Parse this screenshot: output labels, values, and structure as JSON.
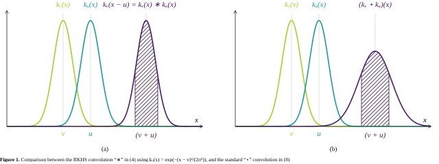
{
  "panels": [
    {
      "kv": "kᵥ(x)",
      "ku": "kᵤ(x)",
      "result": "kᵥ(x − u) = kᵥ(x) ∗ kᵤ(x)",
      "x_axis": "x",
      "v": "v",
      "u": "u",
      "vu": "(v + u)",
      "label": "(a)"
    },
    {
      "kv": "kᵥ(x)",
      "ku": "kᵤ(x)",
      "result": "(kᵥ ⋆ kᵤ)(x)",
      "x_axis": "x",
      "v": "v",
      "u": "u",
      "vu": "(v + u)",
      "label": "(b)"
    }
  ],
  "caption": {
    "label": "Figure 1.",
    "text": "Comparison between the RKHS convolution “∗” in (4) using kᵥ(x) = exp(−(x − v)²/(2σ²)), and the standard “⋆” convolution in (8)"
  }
}
